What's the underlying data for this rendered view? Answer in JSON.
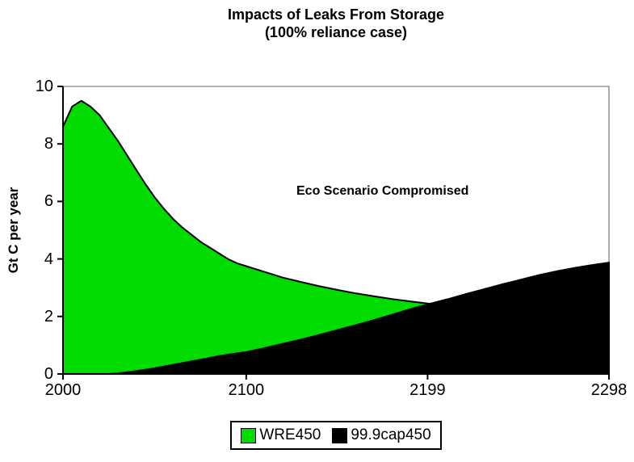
{
  "title": {
    "line1": "Impacts of Leaks From Storage",
    "line2": "(100% reliance case)"
  },
  "annotation": "Eco Scenario Compromised",
  "y_axis": {
    "title": "Gt C per year",
    "tick_labels": [
      "0",
      "2",
      "4",
      "6",
      "8",
      "10"
    ],
    "tick_values": [
      0,
      2,
      4,
      6,
      8,
      10
    ]
  },
  "x_axis": {
    "tick_labels": [
      "2000",
      "2100",
      "2199",
      "2298"
    ],
    "tick_values": [
      2000,
      2100,
      2199,
      2298
    ]
  },
  "legend": {
    "items": [
      {
        "label": "WRE450",
        "color": "#00DC00"
      },
      {
        "label": "99.9cap450",
        "color": "#000000"
      }
    ]
  },
  "colors": {
    "wre450": "#00DC00",
    "cap450": "#000000",
    "outline": "#000000",
    "plot_border": "#808080",
    "axis": "#000000"
  },
  "chart_data": {
    "type": "area",
    "title": "Impacts of Leaks From Storage (100% reliance case)",
    "xlabel": "",
    "ylabel": "Gt C per year",
    "xlim": [
      2000,
      2298
    ],
    "ylim": [
      0,
      10
    ],
    "grid": false,
    "legend_position": "bottom",
    "x": [
      2000,
      2005,
      2010,
      2015,
      2020,
      2025,
      2030,
      2035,
      2040,
      2045,
      2050,
      2055,
      2060,
      2065,
      2070,
      2075,
      2080,
      2085,
      2090,
      2095,
      2100,
      2110,
      2120,
      2130,
      2140,
      2150,
      2160,
      2170,
      2180,
      2190,
      2199,
      2210,
      2220,
      2230,
      2240,
      2250,
      2260,
      2270,
      2280,
      2290,
      2298
    ],
    "series": [
      {
        "name": "WRE450",
        "color": "#00DC00",
        "values": [
          8.6,
          9.3,
          9.5,
          9.3,
          9.0,
          8.55,
          8.1,
          7.6,
          7.1,
          6.6,
          6.15,
          5.75,
          5.4,
          5.1,
          4.85,
          4.6,
          4.4,
          4.2,
          4.0,
          3.85,
          3.75,
          3.55,
          3.35,
          3.2,
          3.05,
          2.92,
          2.8,
          2.7,
          2.6,
          2.52,
          2.45,
          2.4,
          2.35,
          2.3,
          2.28,
          2.25,
          2.22,
          2.2,
          2.18,
          2.16,
          2.15
        ]
      },
      {
        "name": "99.9cap450",
        "color": "#000000",
        "values": [
          0,
          0,
          0,
          0,
          0,
          0,
          0.02,
          0.06,
          0.1,
          0.15,
          0.2,
          0.26,
          0.32,
          0.38,
          0.44,
          0.5,
          0.56,
          0.62,
          0.67,
          0.72,
          0.76,
          0.9,
          1.05,
          1.2,
          1.36,
          1.53,
          1.7,
          1.88,
          2.07,
          2.26,
          2.42,
          2.6,
          2.78,
          2.95,
          3.12,
          3.28,
          3.44,
          3.58,
          3.7,
          3.8,
          3.87
        ]
      }
    ],
    "annotations": [
      {
        "text": "Eco Scenario Compromised",
        "x": 2171,
        "y": 6.35
      }
    ]
  }
}
